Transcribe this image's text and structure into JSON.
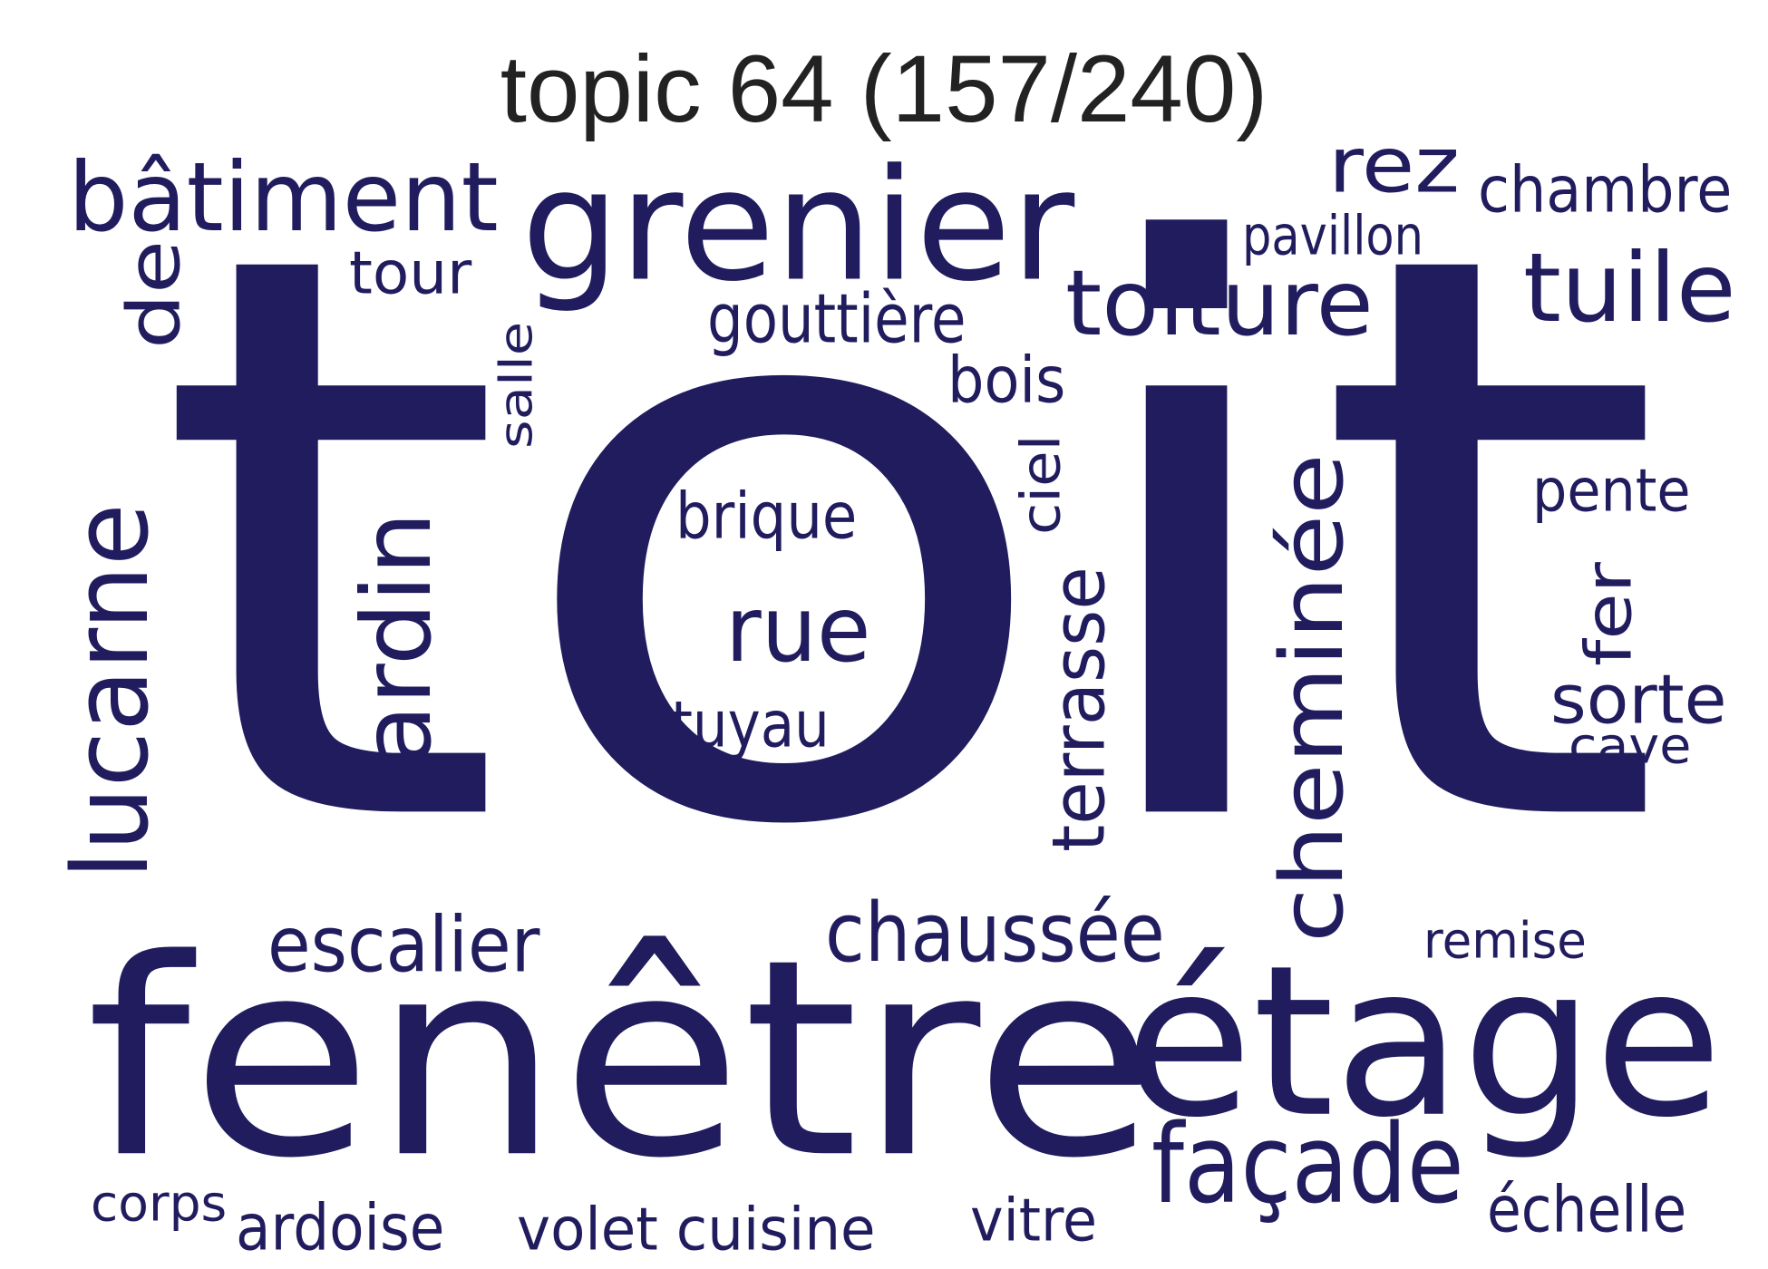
{
  "title": "topic 64 (157/240)",
  "color": "#201c5e",
  "words": [
    {
      "text": "toit",
      "orientation": "horizontal"
    },
    {
      "text": "fenêtre",
      "orientation": "horizontal"
    },
    {
      "text": "étage",
      "orientation": "horizontal"
    },
    {
      "text": "grenier",
      "orientation": "horizontal"
    },
    {
      "text": "façade",
      "orientation": "horizontal"
    },
    {
      "text": "bâtiment",
      "orientation": "horizontal"
    },
    {
      "text": "toiture",
      "orientation": "horizontal"
    },
    {
      "text": "tuile",
      "orientation": "horizontal"
    },
    {
      "text": "rez",
      "orientation": "horizontal"
    },
    {
      "text": "rue",
      "orientation": "horizontal"
    },
    {
      "text": "chaussée",
      "orientation": "horizontal"
    },
    {
      "text": "escalier",
      "orientation": "horizontal"
    },
    {
      "text": "cheminée",
      "orientation": "vertical"
    },
    {
      "text": "lucarne",
      "orientation": "vertical"
    },
    {
      "text": "jardin",
      "orientation": "vertical"
    },
    {
      "text": "terrasse",
      "orientation": "vertical"
    },
    {
      "text": "de",
      "orientation": "vertical"
    },
    {
      "text": "chambre",
      "orientation": "horizontal"
    },
    {
      "text": "gouttière",
      "orientation": "horizontal"
    },
    {
      "text": "sorte",
      "orientation": "horizontal"
    },
    {
      "text": "brique",
      "orientation": "horizontal"
    },
    {
      "text": "tuyau",
      "orientation": "horizontal"
    },
    {
      "text": "bois",
      "orientation": "horizontal"
    },
    {
      "text": "pente",
      "orientation": "horizontal"
    },
    {
      "text": "échelle",
      "orientation": "horizontal"
    },
    {
      "text": "volet cuisine",
      "orientation": "horizontal"
    },
    {
      "text": "vitre",
      "orientation": "horizontal"
    },
    {
      "text": "ardoise",
      "orientation": "horizontal"
    },
    {
      "text": "corps",
      "orientation": "horizontal"
    },
    {
      "text": "tour",
      "orientation": "horizontal"
    },
    {
      "text": "pavillon",
      "orientation": "horizontal"
    },
    {
      "text": "cave",
      "orientation": "horizontal"
    },
    {
      "text": "remise",
      "orientation": "horizontal"
    },
    {
      "text": "fer",
      "orientation": "vertical"
    },
    {
      "text": "ciel",
      "orientation": "vertical"
    },
    {
      "text": "salle",
      "orientation": "vertical"
    }
  ]
}
